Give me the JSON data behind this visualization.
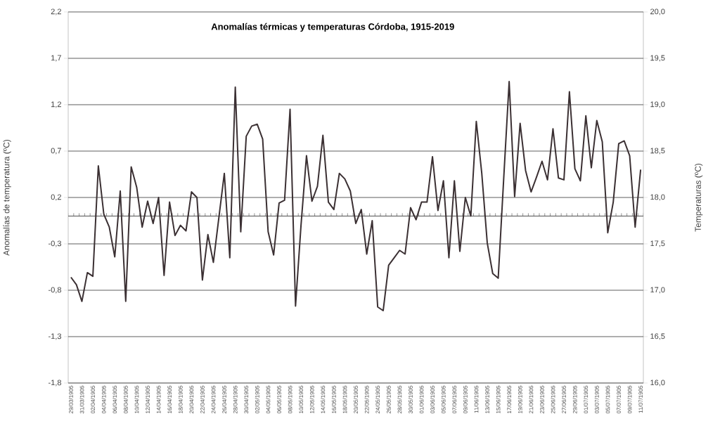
{
  "chart_data": {
    "type": "line",
    "title": "Anomalías térmicas y temperaturas Córdoba, 1915-2019",
    "ylabel": "Anomalías de temperatura (ºC)",
    "y2label": "Temperaturas (ºC)",
    "categories": [
      "29/03/1905",
      null,
      "31/03/1905",
      null,
      "02/04/1905",
      null,
      "04/04/1905",
      null,
      "06/04/1905",
      null,
      "08/04/1905",
      null,
      "10/04/1905",
      null,
      "12/04/1905",
      null,
      "14/04/1905",
      null,
      "16/04/1905",
      null,
      "18/04/1905",
      null,
      "20/04/1905",
      null,
      "22/04/1905",
      null,
      "24/04/1905",
      null,
      "26/04/1905",
      null,
      "28/04/1905",
      null,
      "30/04/1905",
      null,
      "02/05/1905",
      null,
      "04/05/1905",
      null,
      "06/05/1905",
      null,
      "08/05/1905",
      null,
      "10/05/1905",
      null,
      "12/05/1905",
      null,
      "14/05/1905",
      null,
      "16/05/1905",
      null,
      "18/05/1905",
      null,
      "20/05/1905",
      null,
      "22/05/1905",
      null,
      "24/05/1905",
      null,
      "26/05/1905",
      null,
      "28/05/1905",
      null,
      "30/05/1905",
      null,
      "01/06/1905",
      null,
      "03/06/1905",
      null,
      "05/06/1905",
      null,
      "07/06/1905",
      null,
      "09/06/1905",
      null,
      "11/06/1905",
      null,
      "13/06/1905",
      null,
      "15/06/1905",
      null,
      "17/06/1905",
      null,
      "19/06/1905",
      null,
      "21/06/1905",
      null,
      "23/06/1905",
      null,
      "25/06/1905",
      null,
      "27/06/1905",
      null,
      "29/06/1905",
      null,
      "01/07/1905",
      null,
      "03/07/1905",
      null,
      "05/07/1905",
      null,
      "07/07/1905",
      null,
      "09/07/1905",
      null,
      "11/07/1905"
    ],
    "series": [
      {
        "color": "#3b3033",
        "values": [
          -0.66,
          -0.74,
          -0.92,
          -0.61,
          -0.65,
          0.54,
          0.02,
          -0.12,
          -0.44,
          0.27,
          -0.92,
          0.53,
          0.31,
          -0.12,
          0.16,
          -0.08,
          0.2,
          -0.64,
          0.15,
          -0.21,
          -0.1,
          -0.16,
          0.26,
          0.2,
          -0.69,
          -0.2,
          -0.5,
          -0.02,
          0.46,
          -0.45,
          1.39,
          -0.17,
          0.86,
          0.97,
          0.99,
          0.83,
          -0.17,
          -0.42,
          0.14,
          0.17,
          1.15,
          -0.97,
          -0.1,
          0.65,
          0.16,
          0.32,
          0.87,
          0.15,
          0.07,
          0.46,
          0.4,
          0.27,
          -0.08,
          0.07,
          -0.41,
          -0.05,
          -0.98,
          -1.02,
          -0.53,
          -0.45,
          -0.37,
          -0.41,
          0.09,
          -0.04,
          0.15,
          0.15,
          0.64,
          0.06,
          0.38,
          -0.45,
          0.38,
          -0.38,
          0.2,
          0.0,
          1.02,
          0.46,
          -0.29,
          -0.62,
          -0.67,
          0.4,
          1.45,
          0.21,
          1.0,
          0.49,
          0.26,
          0.42,
          0.59,
          0.39,
          0.94,
          0.41,
          0.39,
          1.34,
          0.51,
          0.38,
          1.08,
          0.52,
          1.03,
          0.8,
          -0.18,
          0.15,
          0.78,
          0.81,
          0.65,
          -0.12,
          0.5
        ]
      }
    ],
    "ylim": [
      -1.8,
      2.2
    ],
    "yticks": [
      {
        "value": -1.8,
        "label": "-1,8"
      },
      {
        "value": -1.3,
        "label": "-1,3"
      },
      {
        "value": -0.8,
        "label": "-0,8"
      },
      {
        "value": -0.3,
        "label": "-0,3"
      },
      {
        "value": 0.2,
        "label": "0,2"
      },
      {
        "value": 0.7,
        "label": "0,7"
      },
      {
        "value": 1.2,
        "label": "1,2"
      },
      {
        "value": 1.7,
        "label": "1,7"
      },
      {
        "value": 2.2,
        "label": "2,2"
      }
    ],
    "y2lim": [
      16.0,
      20.0
    ],
    "y2ticks": [
      {
        "value": 16.0,
        "label": "16,0"
      },
      {
        "value": 16.5,
        "label": "16,5"
      },
      {
        "value": 17.0,
        "label": "17,0"
      },
      {
        "value": 17.5,
        "label": "17,5"
      },
      {
        "value": 18.0,
        "label": "18,0"
      },
      {
        "value": 18.5,
        "label": "18,5"
      },
      {
        "value": 19.0,
        "label": "19,0"
      },
      {
        "value": 19.5,
        "label": "19,5"
      },
      {
        "value": 20.0,
        "label": "20,0"
      }
    ],
    "ref_lines": [
      {
        "axis": "y",
        "value": 0
      }
    ],
    "grid": "y",
    "legend": false,
    "marker": "none",
    "line_style": "solid"
  }
}
